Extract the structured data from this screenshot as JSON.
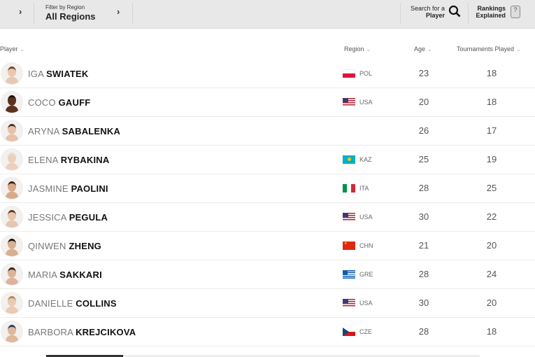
{
  "toolbar": {
    "filter_label": "Filter by Region",
    "filter_value": "All Regions",
    "search_line1": "Search for a",
    "search_line2": "Player",
    "rankings_line1": "Rankings",
    "rankings_line2": "Explained"
  },
  "columns": {
    "player": "Player",
    "region": "Region",
    "age": "Age",
    "tournaments": "Tournaments Played"
  },
  "players": [
    {
      "first": "IGA",
      "last": "SWIATEK",
      "region": "POL",
      "age": "23",
      "tournaments": "18",
      "skin": "#e8c8b0",
      "hair": "#6b4a30"
    },
    {
      "first": "COCO",
      "last": "GAUFF",
      "region": "USA",
      "age": "20",
      "tournaments": "18",
      "skin": "#5a3220",
      "hair": "#1a0f08"
    },
    {
      "first": "ARYNA",
      "last": "SABALENKA",
      "region": "",
      "age": "26",
      "tournaments": "17",
      "skin": "#e6c2a8",
      "hair": "#4a3020"
    },
    {
      "first": "ELENA",
      "last": "RYBAKINA",
      "region": "KAZ",
      "age": "25",
      "tournaments": "19",
      "skin": "#ecd0bc",
      "hair": "#ddd"
    },
    {
      "first": "JASMINE",
      "last": "PAOLINI",
      "region": "ITA",
      "age": "28",
      "tournaments": "25",
      "skin": "#d9aa88",
      "hair": "#3a2416"
    },
    {
      "first": "JESSICA",
      "last": "PEGULA",
      "region": "USA",
      "age": "30",
      "tournaments": "22",
      "skin": "#e6c6ae",
      "hair": "#5a3a24"
    },
    {
      "first": "QINWEN",
      "last": "ZHENG",
      "region": "CHN",
      "age": "21",
      "tournaments": "20",
      "skin": "#d8b090",
      "hair": "#1c120c"
    },
    {
      "first": "MARIA",
      "last": "SAKKARI",
      "region": "GRE",
      "age": "28",
      "tournaments": "24",
      "skin": "#dcb498",
      "hair": "#3a2418"
    },
    {
      "first": "DANIELLE",
      "last": "COLLINS",
      "region": "USA",
      "age": "30",
      "tournaments": "20",
      "skin": "#eccab2",
      "hair": "#b08a5a"
    },
    {
      "first": "BARBORA",
      "last": "KREJCIKOVA",
      "region": "CZE",
      "age": "28",
      "tournaments": "18",
      "skin": "#e0b89a",
      "hair": "#2a3a6a"
    }
  ]
}
